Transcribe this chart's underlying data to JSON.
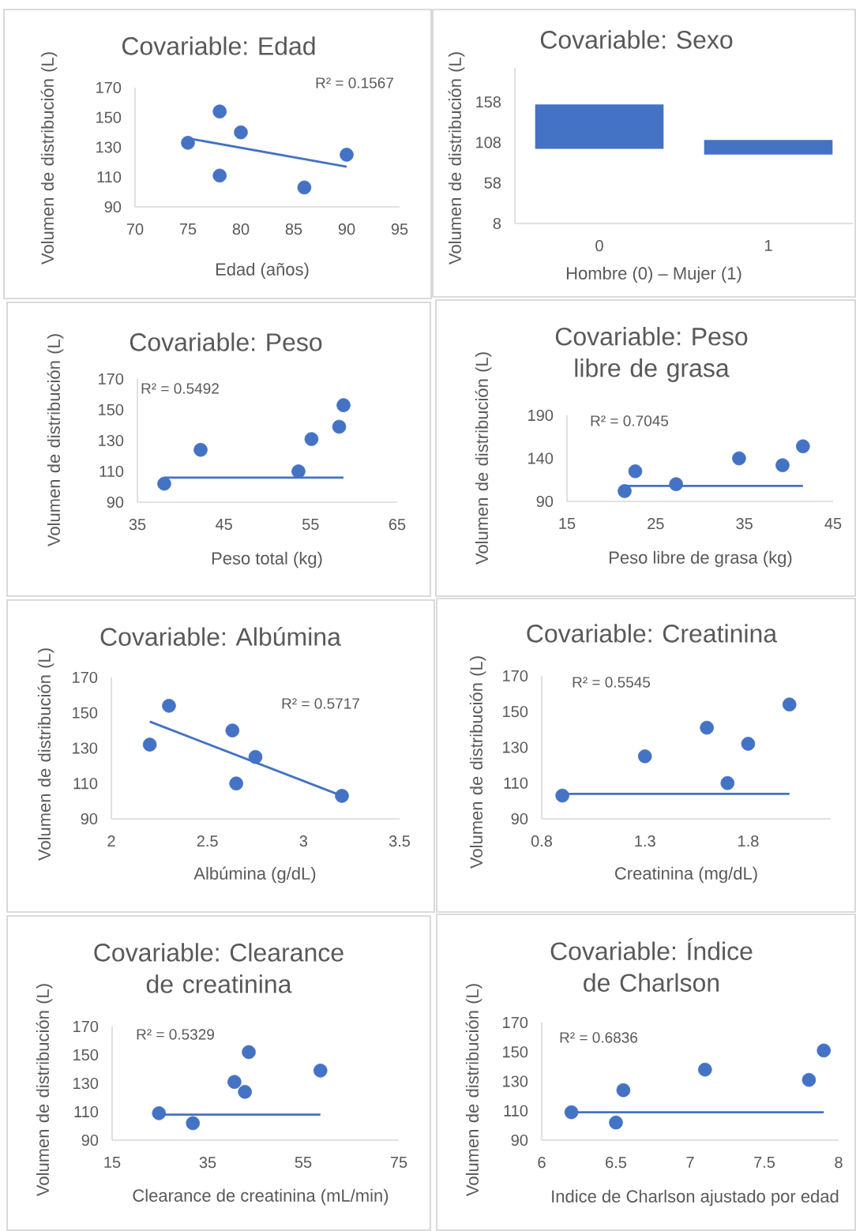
{
  "chart_data": [
    {
      "type": "scatter",
      "title": "Covariable: Edad",
      "xlabel": "Edad (años)",
      "ylabel": "Volumen de distribución (L)",
      "xlim": [
        70,
        95
      ],
      "ylim": [
        90,
        170
      ],
      "xticks": [
        70,
        75,
        80,
        85,
        90,
        95
      ],
      "yticks": [
        90,
        110,
        130,
        150,
        170
      ],
      "annotations": [
        "R² = 0.1567"
      ],
      "series": [
        {
          "type": "scatter",
          "marker": "circle",
          "color": "#4472c4",
          "x": [
            75,
            78,
            78,
            80,
            86,
            90
          ],
          "values": [
            133,
            154,
            111,
            140,
            103,
            125
          ]
        },
        {
          "type": "line",
          "color": "#4472c4",
          "x": [
            75,
            90
          ],
          "values": [
            136,
            117
          ]
        }
      ]
    },
    {
      "type": "bar",
      "title": "Covariable: Sexo",
      "xlabel": "Hombre (0) – Mujer (1)",
      "ylabel": "Volumen de distribución (L)",
      "categories": [
        "0",
        "1"
      ],
      "base": [
        100,
        93
      ],
      "values": [
        55,
        18
      ],
      "color": "#4472c4",
      "ylim": [
        8,
        200
      ],
      "yticks": [
        8,
        58,
        108,
        158
      ]
    },
    {
      "type": "scatter",
      "title": "Covariable: Peso",
      "xlabel": "Peso total (kg)",
      "ylabel": "Volumen de distribución (L)",
      "xlim": [
        35,
        65
      ],
      "ylim": [
        90,
        170
      ],
      "xticks": [
        35,
        45,
        55,
        65
      ],
      "yticks": [
        90,
        110,
        130,
        150,
        170
      ],
      "annotations": [
        "R² = 0.5492"
      ],
      "series": [
        {
          "type": "scatter",
          "marker": "circle",
          "color": "#4472c4",
          "x": [
            38.1,
            42.3,
            53.6,
            55.1,
            58.3,
            58.8
          ],
          "values": [
            102,
            124,
            110,
            131,
            139,
            153
          ]
        },
        {
          "type": "line",
          "color": "#4472c4",
          "x": [
            38.1,
            58.8
          ],
          "values": [
            106,
            106
          ]
        }
      ]
    },
    {
      "type": "scatter",
      "title": "Covariable: Peso libre de grasa",
      "xlabel": "Peso libre de grasa (kg)",
      "ylabel": "Volumen de distribución (L)",
      "xlim": [
        15,
        45
      ],
      "ylim": [
        90,
        190
      ],
      "xticks": [
        15,
        25,
        35,
        45
      ],
      "yticks": [
        90,
        140,
        190
      ],
      "annotations": [
        "R² = 0.7045"
      ],
      "series": [
        {
          "type": "scatter",
          "marker": "circle",
          "color": "#4472c4",
          "x": [
            21.5,
            22.7,
            27.3,
            34.4,
            39.3,
            41.6
          ],
          "values": [
            102,
            125,
            110,
            140,
            132,
            154
          ]
        },
        {
          "type": "line",
          "color": "#4472c4",
          "x": [
            21.5,
            41.6
          ],
          "values": [
            108,
            108
          ]
        }
      ]
    },
    {
      "type": "scatter",
      "title": "Covariable: Albúmina",
      "xlabel": "Albúmina (g/dL)",
      "ylabel": "Volumen de distribución (L)",
      "xlim": [
        2,
        3.5
      ],
      "ylim": [
        90,
        170
      ],
      "xticks": [
        2,
        2.5,
        3,
        3.5
      ],
      "yticks": [
        90,
        110,
        130,
        150,
        170
      ],
      "annotations": [
        "R² = 0.5717"
      ],
      "series": [
        {
          "type": "scatter",
          "marker": "circle",
          "color": "#4472c4",
          "x": [
            2.2,
            2.3,
            2.63,
            2.65,
            2.75,
            3.2
          ],
          "values": [
            132,
            154,
            140,
            110,
            125,
            103
          ]
        },
        {
          "type": "line",
          "color": "#4472c4",
          "x": [
            2.2,
            3.2
          ],
          "values": [
            145,
            103
          ]
        }
      ]
    },
    {
      "type": "scatter",
      "title": "Covariable: Creatinina",
      "xlabel": "Creatinina (mg/dL)",
      "ylabel": "Volumen de distribución (L)",
      "xlim": [
        0.8,
        2.2
      ],
      "ylim": [
        90,
        170
      ],
      "xticks": [
        0.8,
        1.3,
        1.8
      ],
      "yticks": [
        90,
        110,
        130,
        150,
        170
      ],
      "annotations": [
        "R² = 0.5545"
      ],
      "series": [
        {
          "type": "scatter",
          "marker": "circle",
          "color": "#4472c4",
          "x": [
            0.9,
            1.3,
            1.6,
            1.7,
            1.8,
            2.0
          ],
          "values": [
            103,
            125,
            141,
            110,
            132,
            154
          ]
        },
        {
          "type": "line",
          "color": "#4472c4",
          "x": [
            0.9,
            2.0
          ],
          "values": [
            104,
            104
          ]
        }
      ]
    },
    {
      "type": "scatter",
      "title": "Covariable: Clearance de creatinina",
      "xlabel": "Clearance de creatinina (mL/min)",
      "ylabel": "Volumen de distribución (L)",
      "xlim": [
        15,
        75
      ],
      "ylim": [
        90,
        170
      ],
      "xticks": [
        15,
        35,
        55,
        75
      ],
      "yticks": [
        90,
        110,
        130,
        150,
        170
      ],
      "annotations": [
        "R² = 0.5329"
      ],
      "series": [
        {
          "type": "scatter",
          "marker": "circle",
          "color": "#4472c4",
          "x": [
            24.8,
            31.9,
            40.6,
            42.8,
            43.6,
            58.6
          ],
          "values": [
            109,
            102,
            131,
            124,
            152,
            139
          ]
        },
        {
          "type": "line",
          "color": "#4472c4",
          "x": [
            24.8,
            58.6
          ],
          "values": [
            108,
            108
          ]
        }
      ]
    },
    {
      "type": "scatter",
      "title": "Covariable: Índice de Charlson",
      "xlabel": "Indice de Charlson ajustado por edad",
      "ylabel": "Volumen de distribución (L)",
      "xlim": [
        6,
        8
      ],
      "ylim": [
        90,
        170
      ],
      "xticks": [
        6,
        6.5,
        7,
        7.5,
        8
      ],
      "yticks": [
        90,
        110,
        130,
        150,
        170
      ],
      "annotations": [
        "R² = 0.6836"
      ],
      "series": [
        {
          "type": "scatter",
          "marker": "circle",
          "color": "#4472c4",
          "x": [
            6.2,
            6.5,
            6.55,
            7.1,
            7.8,
            7.9
          ],
          "values": [
            109,
            102,
            124,
            138,
            131,
            151
          ]
        },
        {
          "type": "line",
          "color": "#4472c4",
          "x": [
            6.2,
            7.9
          ],
          "values": [
            109,
            109
          ]
        }
      ]
    }
  ]
}
